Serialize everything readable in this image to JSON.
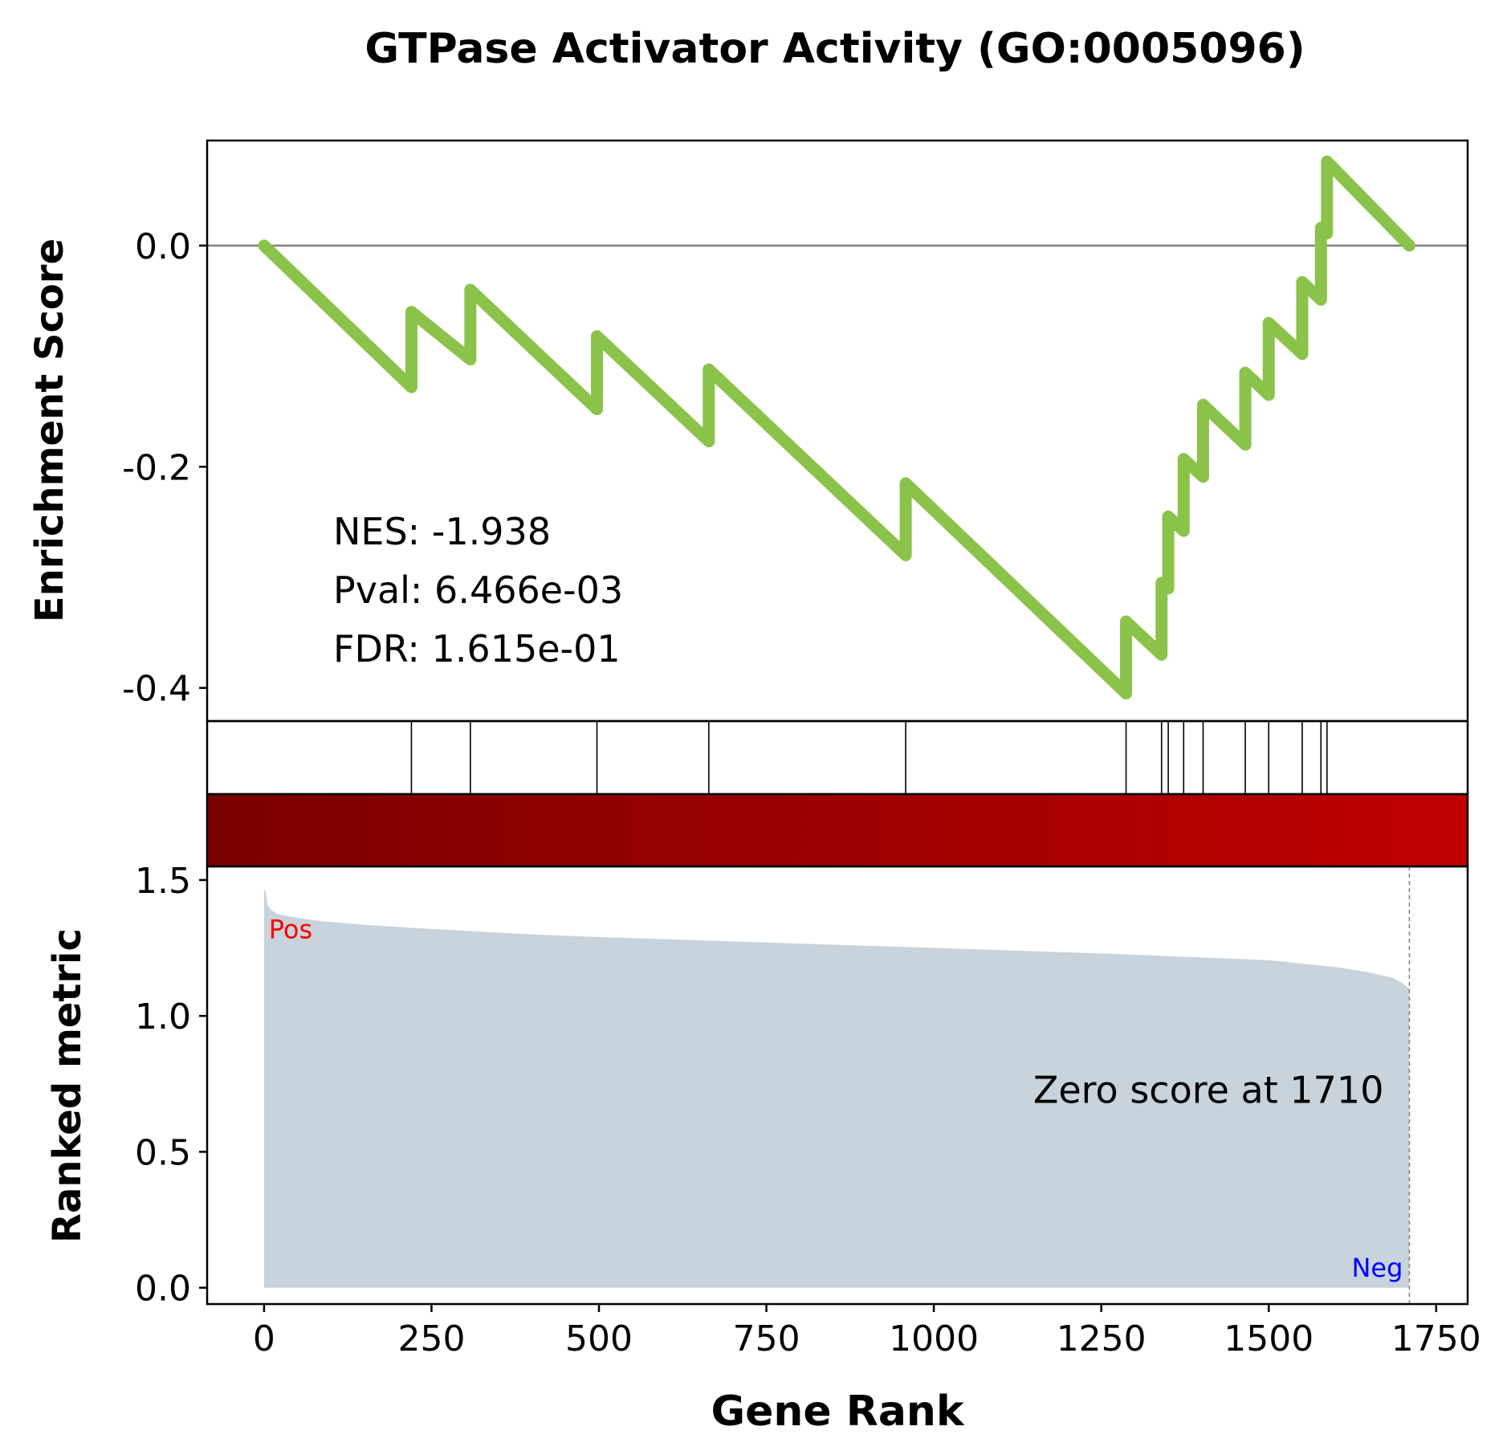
{
  "chart_data": {
    "type": "line",
    "title": "GTPase Activator Activity (GO:0005096)",
    "xlabel": "Gene Rank",
    "colors": {
      "es_line": "#8bc34a",
      "zero_line": "#808080",
      "metric_fill": "#c8d3dc",
      "bar_left": "#7a0000",
      "bar_right": "#c00000",
      "pos_label": "#ff0000",
      "neg_label": "#0000ff"
    },
    "enrichment": {
      "ylabel": "Enrichment Score",
      "ylim": [
        -0.43,
        0.095
      ],
      "yticks": [
        0.0,
        -0.2,
        -0.4
      ],
      "ytick_labels": [
        "0.0",
        "-0.2",
        "-0.4"
      ],
      "points": [
        [
          0,
          0.0
        ],
        [
          220,
          -0.128
        ],
        [
          220,
          -0.06
        ],
        [
          308,
          -0.103
        ],
        [
          308,
          -0.04
        ],
        [
          497,
          -0.148
        ],
        [
          497,
          -0.082
        ],
        [
          664,
          -0.177
        ],
        [
          664,
          -0.112
        ],
        [
          958,
          -0.28
        ],
        [
          958,
          -0.215
        ],
        [
          1287,
          -0.405
        ],
        [
          1287,
          -0.34
        ],
        [
          1340,
          -0.37
        ],
        [
          1340,
          -0.305
        ],
        [
          1350,
          -0.31
        ],
        [
          1350,
          -0.245
        ],
        [
          1373,
          -0.258
        ],
        [
          1373,
          -0.193
        ],
        [
          1402,
          -0.209
        ],
        [
          1402,
          -0.144
        ],
        [
          1465,
          -0.18
        ],
        [
          1465,
          -0.115
        ],
        [
          1500,
          -0.135
        ],
        [
          1500,
          -0.07
        ],
        [
          1550,
          -0.098
        ],
        [
          1550,
          -0.033
        ],
        [
          1578,
          -0.049
        ],
        [
          1578,
          0.016
        ],
        [
          1587,
          0.011
        ],
        [
          1587,
          0.076
        ],
        [
          1710,
          0.0
        ]
      ],
      "annotations": [
        "NES: -1.938",
        "Pval: 6.466e-03",
        "FDR: 1.615e-01"
      ]
    },
    "hits": [
      220,
      308,
      497,
      664,
      958,
      1287,
      1340,
      1350,
      1373,
      1402,
      1465,
      1500,
      1550,
      1578,
      1587
    ],
    "ranked_metric": {
      "ylabel": "Ranked metric",
      "ylim": [
        -0.06,
        1.55
      ],
      "yticks": [
        0.0,
        0.5,
        1.0,
        1.5
      ],
      "ytick_labels": [
        "0.0",
        "0.5",
        "1.0",
        "1.5"
      ],
      "points": [
        [
          0,
          1.47
        ],
        [
          3,
          1.45
        ],
        [
          5,
          1.41
        ],
        [
          10,
          1.39
        ],
        [
          20,
          1.375
        ],
        [
          40,
          1.365
        ],
        [
          80,
          1.35
        ],
        [
          150,
          1.335
        ],
        [
          250,
          1.32
        ],
        [
          400,
          1.3
        ],
        [
          500,
          1.29
        ],
        [
          750,
          1.27
        ],
        [
          1000,
          1.25
        ],
        [
          1250,
          1.23
        ],
        [
          1500,
          1.205
        ],
        [
          1600,
          1.18
        ],
        [
          1650,
          1.16
        ],
        [
          1685,
          1.14
        ],
        [
          1700,
          1.12
        ],
        [
          1710,
          1.1
        ]
      ],
      "zero_score_label": "Zero score at 1710",
      "zero_score_at": 1710,
      "pos_label": "Pos",
      "neg_label": "Neg"
    },
    "xlim": [
      -85,
      1797
    ],
    "xticks": [
      0,
      250,
      500,
      750,
      1000,
      1250,
      1500,
      1750
    ],
    "xtick_labels": [
      "0",
      "250",
      "500",
      "750",
      "1000",
      "1250",
      "1500",
      "1750"
    ]
  }
}
